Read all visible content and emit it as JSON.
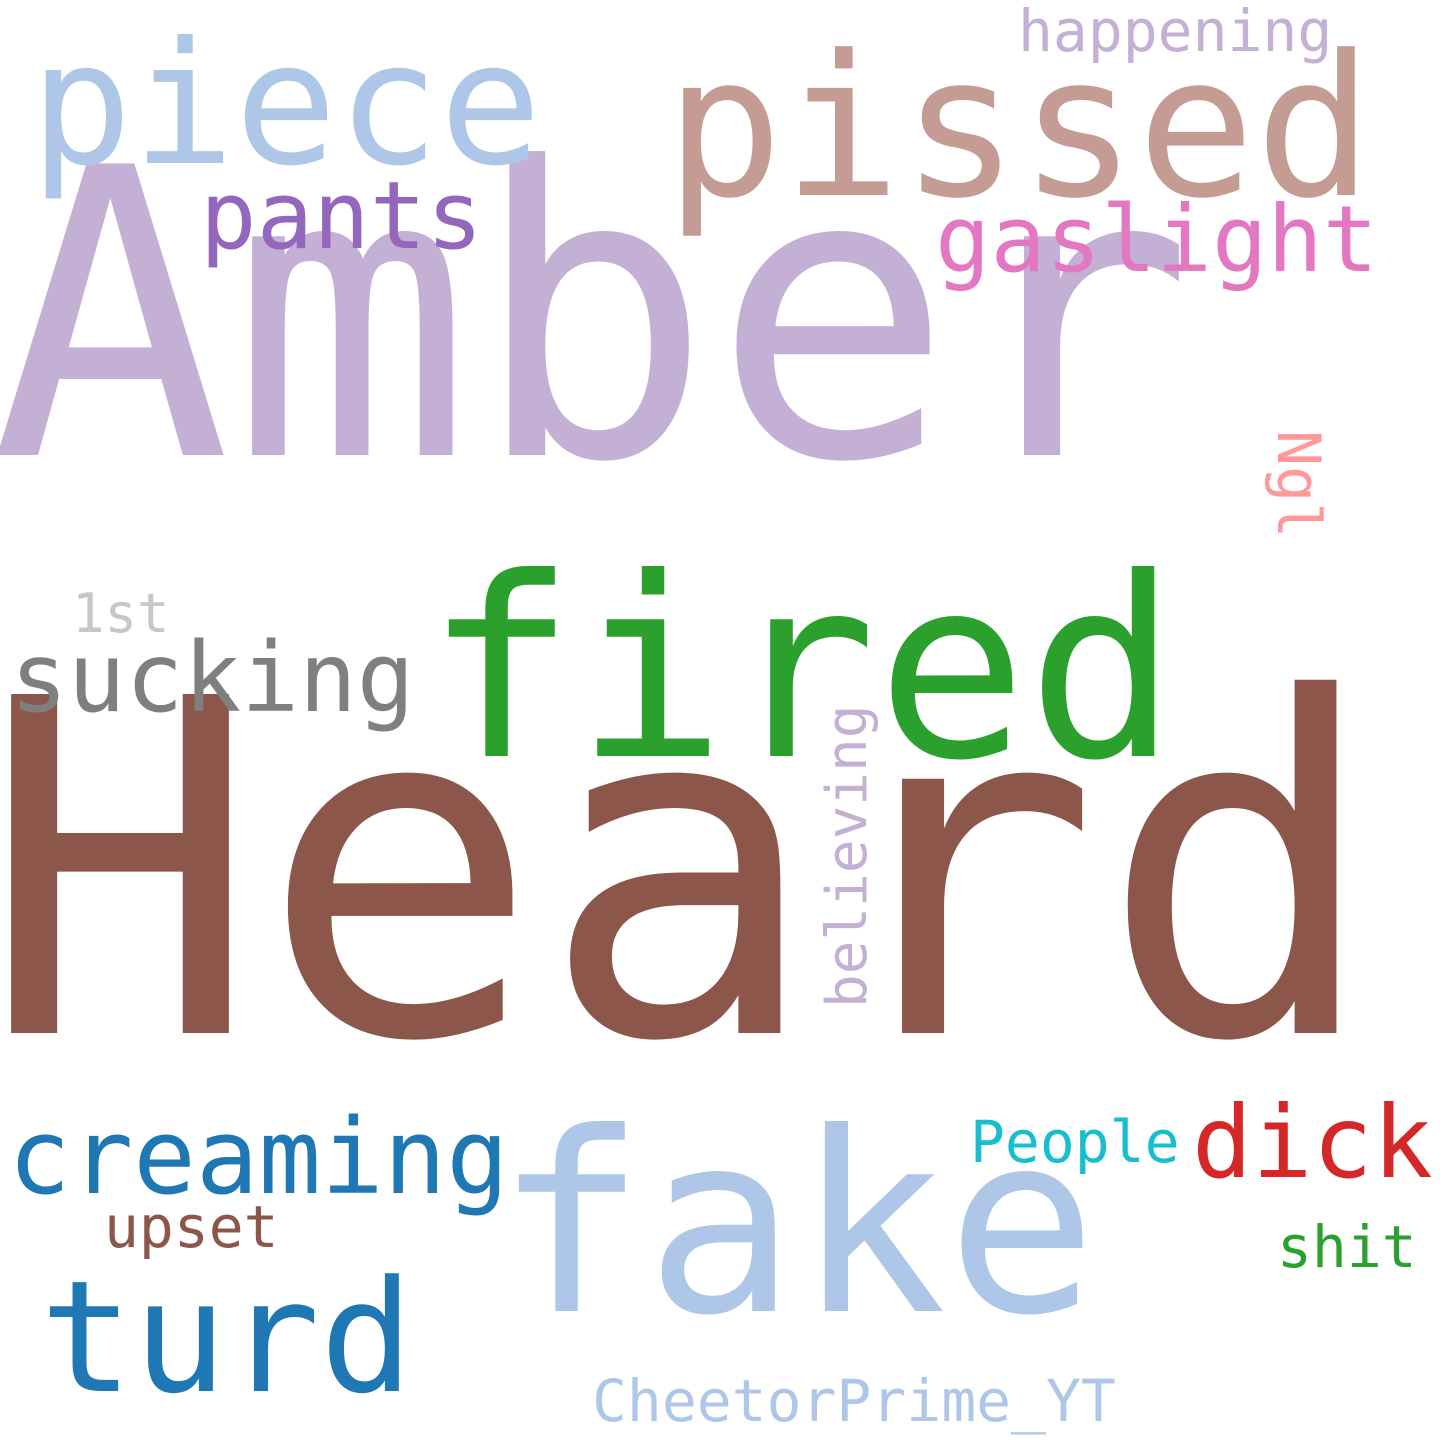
{
  "words": {
    "amber": {
      "text": "Amber",
      "color": "#c5b0d5"
    },
    "heard": {
      "text": "Heard",
      "color": "#8c564b"
    },
    "fired": {
      "text": "fired",
      "color": "#2ca02c"
    },
    "fake": {
      "text": "fake",
      "color": "#aec7e8"
    },
    "pissed": {
      "text": "pissed",
      "color": "#c49c94"
    },
    "piece": {
      "text": "piece",
      "color": "#aec7e8"
    },
    "turd": {
      "text": "turd",
      "color": "#1f77b4"
    },
    "creaming": {
      "text": "creaming",
      "color": "#1f77b4"
    },
    "sucking": {
      "text": "sucking",
      "color": "#7f7f7f"
    },
    "pants": {
      "text": "pants",
      "color": "#9467bd"
    },
    "gaslight": {
      "text": "gaslight",
      "color": "#e377c2"
    },
    "dick": {
      "text": "dick",
      "color": "#d62728"
    },
    "happening": {
      "text": "happening",
      "color": "#c5b0d5"
    },
    "people": {
      "text": "People",
      "color": "#17becf"
    },
    "cheetor": {
      "text": "CheetorPrime_YT",
      "color": "#aec7e8"
    },
    "believing": {
      "text": "believing",
      "color": "#c5b0d5"
    },
    "upset": {
      "text": "upset",
      "color": "#8c564b"
    },
    "shit": {
      "text": "shit",
      "color": "#2ca02c"
    },
    "ngl": {
      "text": "Ngl",
      "color": "#ff9896"
    },
    "first": {
      "text": "1st",
      "color": "#c7c7c7"
    }
  }
}
